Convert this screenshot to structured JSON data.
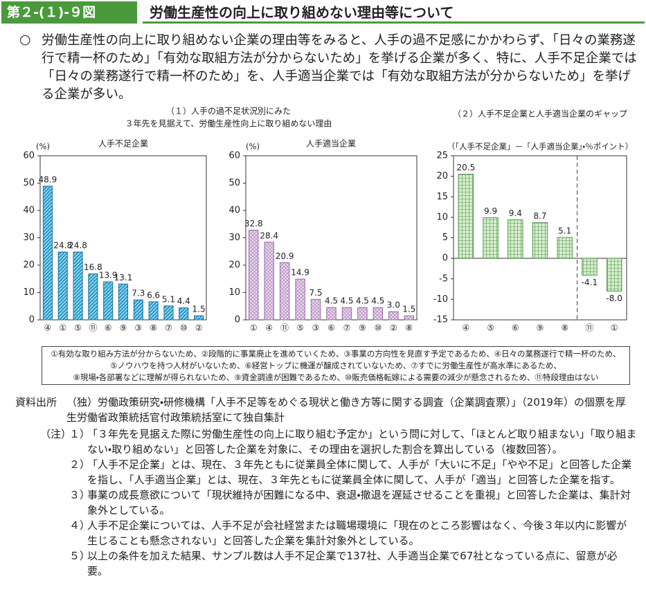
{
  "header": {
    "number": "第２-(１)-９図",
    "title": "労働生産性の向上に取り組めない理由等について"
  },
  "lead": {
    "bullet": "○",
    "text": "労働生産性の向上に取り組めない企業の理由等をみると、人手の過不足感にかかわらず、「日々の業務遂行で精一杯のため」「有効な取組方法が分からないため」を挙げる企業が多く、特に、人手不足企業では「日々の業務遂行で精一杯のため」を、人手適当企業では「有効な取組方法が分からないため」を挙げる企業が多い。"
  },
  "figure_subtitle": [
    "（１）人手の過不足状況別にみた",
    "３年先を見据えて、労働生産性向上に取り組めない理由"
  ],
  "chart_data": [
    {
      "type": "bar",
      "title": "人手不足企業",
      "ylabel": "(%)",
      "categories": [
        "④",
        "①",
        "⑤",
        "⑪",
        "⑥",
        "⑨",
        "③",
        "⑧",
        "⑦",
        "⑩",
        "②"
      ],
      "values": [
        48.9,
        24.8,
        24.8,
        16.8,
        13.9,
        13.1,
        7.3,
        6.6,
        5.1,
        4.4,
        1.5
      ],
      "color": "#2a9fd0",
      "edge_color": "#1b6f99",
      "ylim": [
        0,
        60
      ],
      "yticks": [
        0,
        10,
        20,
        30,
        40,
        50,
        60
      ]
    },
    {
      "type": "bar",
      "title": "人手適当企業",
      "ylabel": "(%)",
      "categories": [
        "①",
        "④",
        "⑪",
        "⑤",
        "③",
        "⑥",
        "⑦",
        "⑨",
        "⑩",
        "②",
        "⑧"
      ],
      "values": [
        32.8,
        28.4,
        20.9,
        14.9,
        7.5,
        4.5,
        4.5,
        4.5,
        4.5,
        3,
        1.5
      ],
      "value_labels": [
        "32.8",
        "28.4",
        "20.9",
        "14.9",
        "7.5",
        "4.5",
        "4.5",
        "4.5",
        "4.5",
        "3.0",
        "1.5"
      ],
      "color": "#ecdcf0",
      "edge_color": "#9a6aa8",
      "ylim": [
        0,
        60
      ],
      "yticks": [
        0,
        10,
        20,
        30,
        40,
        50,
        60
      ]
    },
    {
      "type": "bar",
      "title": "（２）人手不足企業と人手適当企業のギャップ",
      "ylabel": "（「人手不足企業」－「人手適当企業」・％ポイント）",
      "categories": [
        "④",
        "⑤",
        "⑥",
        "⑨",
        "⑧",
        "⑪",
        "①"
      ],
      "values": [
        20.5,
        9.9,
        9.4,
        8.7,
        5.1,
        -4.1,
        -8
      ],
      "value_labels": [
        "20.5",
        "9.9",
        "9.4",
        "8.7",
        "5.1",
        "-4.1",
        "-8.0"
      ],
      "color": "#d8ecd0",
      "edge_color": "#4f9a48",
      "ylim": [
        -15,
        25
      ],
      "yticks": [
        -15,
        -10,
        -5,
        0,
        5,
        10,
        15,
        20,
        25
      ]
    }
  ],
  "reason_legend": [
    "①有効な取り組み方法が分からないため、②段階的に事業廃止を進めていくため、③事業の方向性を見直す予定であるため、④日々の業務遂行で精一杯のため、",
    "⑤ノウハウを持つ人材がいないため、⑥経営トップに機運が醸成されていないため、⑦すでに労働生産性が高水準にあるため、",
    "⑧現場・各部署などに理解が得られないため、⑨資金調達が困難であるため、⑩販売価格転嫁による需要の減少が懸念されるため、⑪特段理由はない"
  ],
  "source": {
    "label": "資料出所",
    "text": "（独）労働政策研究・研修機構「人手不足等をめぐる現状と働き方等に関する調査（企業調査票）」（2019年）の個票を厚生労働省政策統括官付政策統括室にて独自集計"
  },
  "notes": {
    "label": "（注）",
    "items": [
      {
        "number": "１）",
        "text": "「３年先を見据えた際に労働生産性の向上に取り組む予定か」という問に対して、「ほとんど取り組まない」「取り組まない・取り組めない」と回答した企業を対象に、その理由を選択した割合を算出している（複数回答）。"
      },
      {
        "number": "２）",
        "text": "「人手不足企業」とは、現在、３年先ともに従業員全体に関して、人手が「大いに不足」「やや不足」と回答した企業を指し、「人手適当企業」とは、現在、３年先ともに従業員全体に関して、人手が「適当」と回答した企業を指す。"
      },
      {
        "number": "３）",
        "text": "事業の成長意欲について「現状維持が困難になる中、衰退・撤退を遅延させることを重視」と回答した企業は、集計対象外としている。"
      },
      {
        "number": "４）",
        "text": "人手不足企業については、人手不足が会社経営または職場環境に「現在のところ影響はなく、今後３年以内に影響が生じることも懸念されない」と回答した企業を集計対象外としている。"
      },
      {
        "number": "５）",
        "text": "以上の条件を加えた結果、サンプル数は人手不足企業で137社、人手適当企業で67社となっている点に、留意が必要。"
      }
    ]
  }
}
